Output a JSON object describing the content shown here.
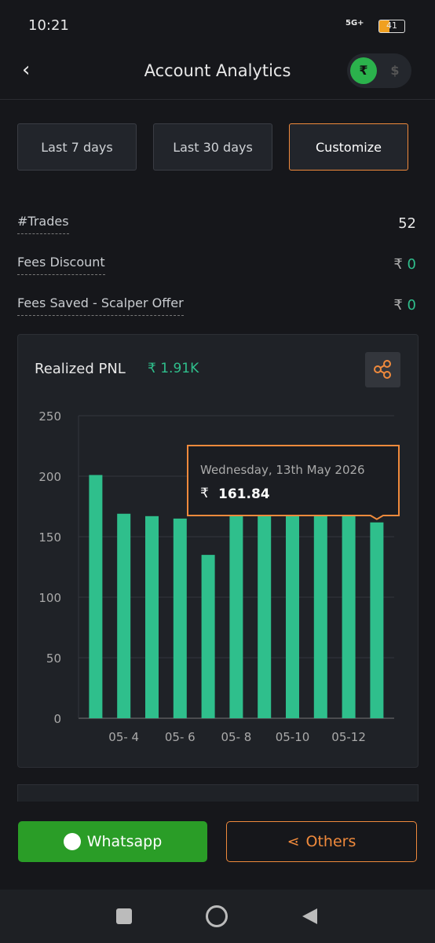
{
  "status": {
    "time": "10:21",
    "network": "5G+",
    "battery": "41"
  },
  "header": {
    "title": "Account Analytics",
    "currencies": [
      "₹",
      "$"
    ]
  },
  "filters": [
    "Last 7 days",
    "Last 30 days",
    "Customize"
  ],
  "stats": [
    {
      "label": "#Trades",
      "value": "52"
    },
    {
      "label": "Fees Discount",
      "currency": "₹",
      "value": "0"
    },
    {
      "label": "Fees Saved - Scalper Offer",
      "currency": "₹",
      "value": "0"
    }
  ],
  "card": {
    "title": "Realized PNL",
    "total": "₹ 1.91K"
  },
  "chart_data": {
    "type": "bar",
    "categories": [
      null,
      "05- 4",
      null,
      "05- 6",
      null,
      "05- 8",
      null,
      "05-10",
      null,
      "05-12",
      null
    ],
    "values": [
      201,
      169,
      167,
      165,
      135,
      168,
      168,
      168,
      168,
      168,
      161.84
    ],
    "color": "#2fbf8c",
    "ylim": [
      0,
      250
    ],
    "yticks": [
      0,
      50,
      100,
      150,
      200,
      250
    ],
    "grid": true,
    "tooltip": {
      "date": "Wednesday, 13th May 2026",
      "currency": "₹"
    }
  },
  "actions": [
    "Whatsapp",
    "Others"
  ]
}
